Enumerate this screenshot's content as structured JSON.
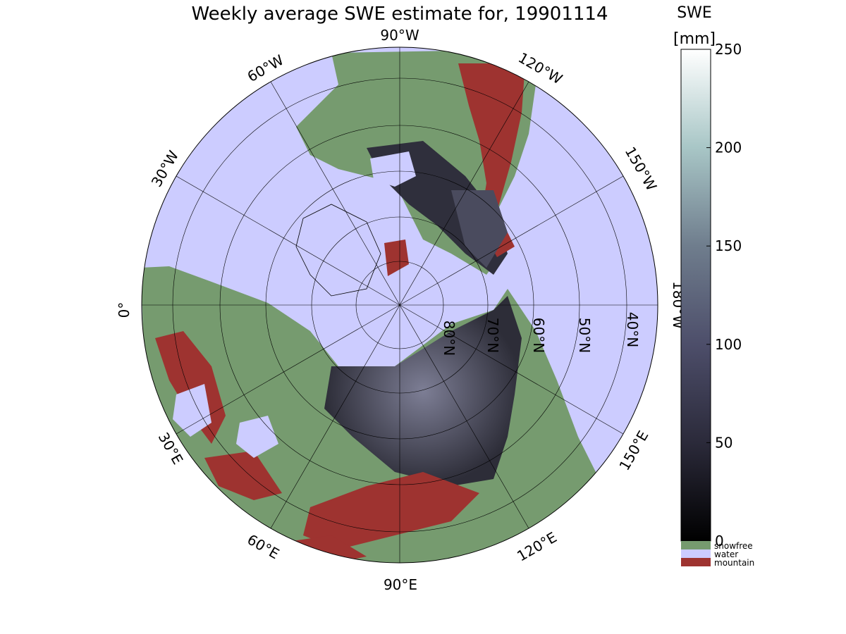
{
  "title": "Weekly average SWE estimate for, 19901114",
  "colorbar": {
    "title_line1": "SWE",
    "title_line2": "[mm]",
    "ticks": [
      "250",
      "200",
      "150",
      "100",
      "50",
      "0"
    ],
    "tick_values": [
      250,
      200,
      150,
      100,
      50,
      0
    ],
    "range": [
      0,
      250
    ],
    "categories": [
      {
        "label": "snowfree",
        "color": "#769b6f"
      },
      {
        "label": "water",
        "color": "#ccccff"
      },
      {
        "label": "mountain",
        "color": "#9e3330"
      }
    ]
  },
  "map": {
    "projection": "north polar stereographic",
    "ocean_color": "#ccccff",
    "land_color": "#769b6f",
    "mountain_color": "#9e3330",
    "snow_color": "#2c2c38",
    "longitude_labels": {
      "w90": "90°W",
      "w60": "60°W",
      "w30": "30°W",
      "lon0": "0°",
      "e30": "30°E",
      "e60": "60°E",
      "e90": "90°E",
      "e120": "120°E",
      "e150": "150°E",
      "w180": "180°W",
      "w150": "150°W",
      "w120": "120°W"
    },
    "latitude_labels": {
      "n80": "80°N",
      "n70": "70°N",
      "n60": "60°N",
      "n50": "50°N",
      "n40": "40°N"
    }
  }
}
